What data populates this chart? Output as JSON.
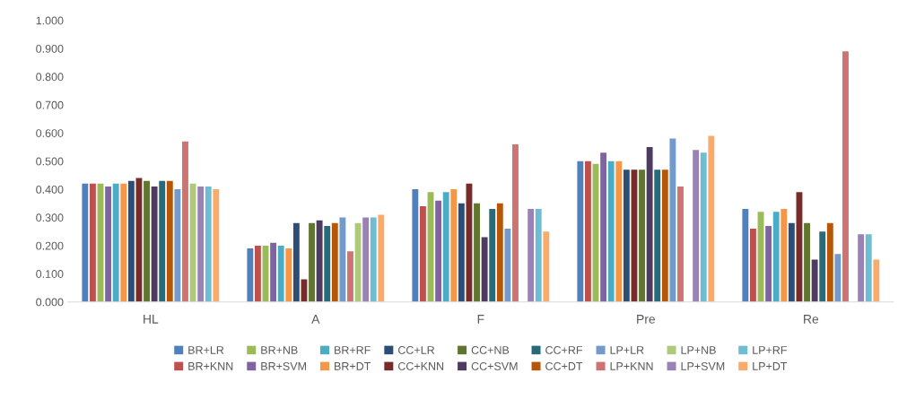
{
  "chart_data": {
    "type": "bar",
    "categories": [
      "HL",
      "A",
      "F",
      "Pre",
      "Re"
    ],
    "ylim": [
      0,
      1
    ],
    "yticks": [
      {
        "value": 0,
        "label": "0.000"
      },
      {
        "value": 0.1,
        "label": "0.100"
      },
      {
        "value": 0.2,
        "label": "0.200"
      },
      {
        "value": 0.3,
        "label": "0.300"
      },
      {
        "value": 0.4,
        "label": "0.400"
      },
      {
        "value": 0.5,
        "label": "0.500"
      },
      {
        "value": 0.6,
        "label": "0.600"
      },
      {
        "value": 0.7,
        "label": "0.700"
      },
      {
        "value": 0.8,
        "label": "0.800"
      },
      {
        "value": 0.9,
        "label": "0.900"
      },
      {
        "value": 1,
        "label": "1.000"
      }
    ],
    "grid": false,
    "legend": "bottom",
    "series": [
      {
        "name": "BR+LR",
        "color": "#4f81bd",
        "values": [
          0.42,
          0.19,
          0.4,
          0.5,
          0.33
        ]
      },
      {
        "name": "BR+KNN",
        "color": "#c0504d",
        "values": [
          0.42,
          0.2,
          0.34,
          0.5,
          0.26
        ]
      },
      {
        "name": "BR+NB",
        "color": "#9bbb59",
        "values": [
          0.42,
          0.2,
          0.39,
          0.49,
          0.32
        ]
      },
      {
        "name": "BR+SVM",
        "color": "#8064a2",
        "values": [
          0.41,
          0.21,
          0.36,
          0.53,
          0.27
        ]
      },
      {
        "name": "BR+RF",
        "color": "#4bacc6",
        "values": [
          0.42,
          0.2,
          0.39,
          0.5,
          0.32
        ]
      },
      {
        "name": "BR+DT",
        "color": "#f79646",
        "values": [
          0.42,
          0.19,
          0.4,
          0.5,
          0.33
        ]
      },
      {
        "name": "CC+LR",
        "color": "#2c4d75",
        "values": [
          0.43,
          0.28,
          0.35,
          0.47,
          0.28
        ]
      },
      {
        "name": "CC+KNN",
        "color": "#772c2a",
        "values": [
          0.44,
          0.08,
          0.42,
          0.47,
          0.39
        ]
      },
      {
        "name": "CC+NB",
        "color": "#5f7530",
        "values": [
          0.43,
          0.28,
          0.35,
          0.47,
          0.28
        ]
      },
      {
        "name": "CC+SVM",
        "color": "#4d3b62",
        "values": [
          0.41,
          0.29,
          0.23,
          0.55,
          0.15
        ]
      },
      {
        "name": "CC+RF",
        "color": "#276a7c",
        "values": [
          0.43,
          0.27,
          0.33,
          0.47,
          0.25
        ]
      },
      {
        "name": "CC+DT",
        "color": "#b65708",
        "values": [
          0.43,
          0.28,
          0.35,
          0.47,
          0.28
        ]
      },
      {
        "name": "LP+LR",
        "color": "#729aca",
        "values": [
          0.4,
          0.3,
          0.26,
          0.58,
          0.17
        ]
      },
      {
        "name": "LP+KNN",
        "color": "#cd7371",
        "values": [
          0.57,
          0.18,
          0.56,
          0.41,
          0.89
        ]
      },
      {
        "name": "LP+NB",
        "color": "#afc97a",
        "values": [
          0.42,
          0.28,
          null,
          null,
          null
        ]
      },
      {
        "name": "LP+SVM",
        "color": "#9983b5",
        "values": [
          0.41,
          0.3,
          0.33,
          0.54,
          0.24
        ]
      },
      {
        "name": "LP+RF",
        "color": "#6fbdd1",
        "values": [
          0.41,
          0.3,
          0.33,
          0.53,
          0.24
        ]
      },
      {
        "name": "LP+DT",
        "color": "#f9ab6b",
        "values": [
          0.4,
          0.31,
          0.25,
          0.59,
          0.15
        ]
      }
    ]
  }
}
